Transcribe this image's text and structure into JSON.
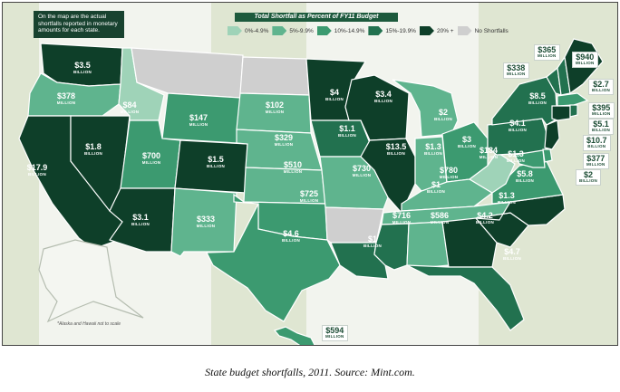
{
  "note": "On the map are the actual shortfalls reported in monetary amounts for each state.",
  "legend": {
    "title": "Total Shortfall as Percent of FY11 Budget",
    "items": [
      {
        "label": "0%-4.9%",
        "color": "#9fd3b8"
      },
      {
        "label": "5%-9.9%",
        "color": "#5fb48e"
      },
      {
        "label": "10%-14.9%",
        "color": "#3c9a70"
      },
      {
        "label": "15%-19.9%",
        "color": "#22714f"
      },
      {
        "label": "20% +",
        "color": "#0e3f29"
      },
      {
        "label": "No Shortfalls",
        "color": "#cfcfcf"
      }
    ]
  },
  "unit_labels": {
    "billion": "BILLION",
    "million": "MILLION"
  },
  "states": [
    {
      "id": "wa",
      "amount": "$3.5",
      "unit": "BILLION"
    },
    {
      "id": "or",
      "amount": "$378",
      "unit": "MILLION"
    },
    {
      "id": "ca",
      "amount": "$17.9",
      "unit": "BILLION"
    },
    {
      "id": "nv",
      "amount": "$1.8",
      "unit": "BILLION"
    },
    {
      "id": "id",
      "amount": "$84",
      "unit": "MILLION"
    },
    {
      "id": "mt",
      "amount": "",
      "unit": ""
    },
    {
      "id": "wy",
      "amount": "$147",
      "unit": "MILLION"
    },
    {
      "id": "ut",
      "amount": "$700",
      "unit": "MILLION"
    },
    {
      "id": "co",
      "amount": "$1.5",
      "unit": "BILLION"
    },
    {
      "id": "az",
      "amount": "$3.1",
      "unit": "BILLION"
    },
    {
      "id": "nm",
      "amount": "$333",
      "unit": "MILLION"
    },
    {
      "id": "nd",
      "amount": "",
      "unit": ""
    },
    {
      "id": "sd",
      "amount": "$102",
      "unit": "MILLION"
    },
    {
      "id": "ne",
      "amount": "$329",
      "unit": "MILLION"
    },
    {
      "id": "ks",
      "amount": "$510",
      "unit": "MILLION"
    },
    {
      "id": "ok",
      "amount": "$725",
      "unit": "MILLION"
    },
    {
      "id": "tx",
      "amount": "$4.6",
      "unit": "BILLION"
    },
    {
      "id": "mn",
      "amount": "$4",
      "unit": "BILLION"
    },
    {
      "id": "ia",
      "amount": "$1.1",
      "unit": "BILLION"
    },
    {
      "id": "mo",
      "amount": "$730",
      "unit": "MILLION"
    },
    {
      "id": "ar",
      "amount": "",
      "unit": ""
    },
    {
      "id": "la",
      "amount": "$1",
      "unit": "BILLION"
    },
    {
      "id": "wi",
      "amount": "$3.4",
      "unit": "BILLION"
    },
    {
      "id": "il",
      "amount": "$13.5",
      "unit": "BILLION"
    },
    {
      "id": "mi",
      "amount": "$2",
      "unit": "BILLION"
    },
    {
      "id": "in",
      "amount": "$1.3",
      "unit": "BILLION"
    },
    {
      "id": "oh",
      "amount": "$3",
      "unit": "BILLION"
    },
    {
      "id": "ky",
      "amount": "$780",
      "unit": "MILLION"
    },
    {
      "id": "tn",
      "amount": "$1",
      "unit": "BILLION"
    },
    {
      "id": "ms",
      "amount": "$716",
      "unit": "MILLION"
    },
    {
      "id": "al",
      "amount": "$586",
      "unit": "MILLION"
    },
    {
      "id": "ga",
      "amount": "$4.2",
      "unit": "BILLION"
    },
    {
      "id": "fl",
      "amount": "$4.7",
      "unit": "BILLION"
    },
    {
      "id": "sc",
      "amount": "$1.3",
      "unit": "BILLION"
    },
    {
      "id": "nc",
      "amount": "$5.8",
      "unit": "BILLION"
    },
    {
      "id": "va",
      "amount": "$1.3",
      "unit": "BILLION"
    },
    {
      "id": "wv",
      "amount": "$134",
      "unit": "MILLION"
    },
    {
      "id": "pa",
      "amount": "$4.1",
      "unit": "BILLION"
    },
    {
      "id": "ny",
      "amount": "$8.5",
      "unit": "BILLION"
    },
    {
      "id": "ak",
      "amount": "",
      "unit": ""
    },
    {
      "id": "hi",
      "amount": "",
      "unit": ""
    }
  ],
  "callouts": [
    {
      "id": "vt",
      "amount": "$338",
      "unit": "MILLION"
    },
    {
      "id": "nh",
      "amount": "$365",
      "unit": "MILLION"
    },
    {
      "id": "me",
      "amount": "$940",
      "unit": "MILLION"
    },
    {
      "id": "ma",
      "amount": "$2.7",
      "unit": "BILLION"
    },
    {
      "id": "ri",
      "amount": "$395",
      "unit": "MILLION"
    },
    {
      "id": "ct",
      "amount": "$5.1",
      "unit": "BILLION"
    },
    {
      "id": "nj",
      "amount": "$10.7",
      "unit": "BILLION"
    },
    {
      "id": "de",
      "amount": "$377",
      "unit": "MILLION"
    },
    {
      "id": "md",
      "amount": "$2",
      "unit": "BILLION"
    },
    {
      "id": "hi",
      "amount": "$594",
      "unit": "MILLION"
    }
  ],
  "scale_note": "*Alaska and Hawaii not to scale",
  "caption": "State budget shortfalls, 2011. Source: Mint.com."
}
